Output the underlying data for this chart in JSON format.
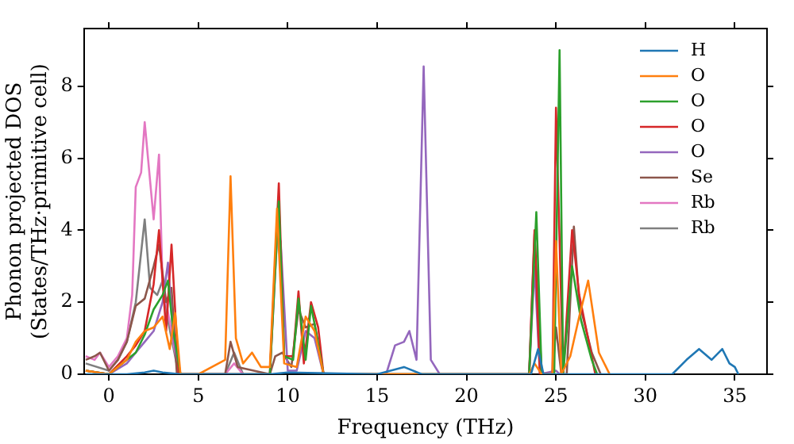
{
  "chart_data": {
    "type": "line",
    "xlabel": "Frequency (THz)",
    "ylabel": "Phonon projected DOS\n(States/THz·primitive cell)",
    "xlim": [
      -1.4,
      36.8
    ],
    "ylim": [
      0,
      9.6
    ],
    "xticks": [
      0,
      5,
      10,
      15,
      20,
      25,
      30,
      35
    ],
    "yticks": [
      0,
      2,
      4,
      6,
      8
    ],
    "grid": false,
    "legend": "top right",
    "marker": "none",
    "line_style": "solid",
    "series": [
      {
        "name": "H",
        "color": "#1f77b4",
        "x": [
          -1.3,
          0,
          1,
          2,
          2.5,
          3,
          4,
          9,
          10,
          15,
          16.5,
          17.5,
          20,
          23.6,
          24,
          24.3,
          25,
          31.5,
          32.3,
          33,
          33.7,
          34.3,
          34.7,
          35,
          35.2
        ],
        "values": [
          0,
          0,
          0,
          0.05,
          0.1,
          0.05,
          0,
          0,
          0.05,
          0,
          0.2,
          0,
          0,
          0,
          0.7,
          0,
          0,
          0,
          0.4,
          0.7,
          0.4,
          0.7,
          0.3,
          0.2,
          0
        ]
      },
      {
        "name": "O",
        "color": "#ff7f0e",
        "x": [
          -1.3,
          0,
          1,
          1.5,
          2,
          2.5,
          3,
          3.4,
          3.7,
          4,
          5,
          6.5,
          6.8,
          7.1,
          7.5,
          8,
          8.5,
          9,
          9.4,
          9.8,
          10.5,
          11,
          11.5,
          12,
          23.5,
          23.8,
          24.2,
          24.8,
          25,
          25.3,
          25.8,
          26.3,
          26.8,
          27.4,
          28
        ],
        "values": [
          0.1,
          0,
          0.4,
          0.9,
          1.2,
          1.3,
          1.6,
          0.7,
          1.7,
          0,
          0,
          0.4,
          5.5,
          1.0,
          0.3,
          0.6,
          0.2,
          0.2,
          4.6,
          0.3,
          0.2,
          1.6,
          1.2,
          0,
          0,
          0.3,
          0,
          0,
          3.7,
          0,
          0.5,
          1.6,
          2.6,
          0.6,
          0
        ]
      },
      {
        "name": "O",
        "color": "#2ca02c",
        "x": [
          -1.3,
          0,
          1,
          1.5,
          2,
          2.5,
          3,
          3.3,
          3.6,
          4,
          9,
          9.5,
          9.8,
          10.3,
          10.6,
          11,
          11.3,
          11.5,
          12,
          23.5,
          23.9,
          24.2,
          24.9,
          25.2,
          25.4,
          25.9,
          26.4,
          27,
          27.3
        ],
        "values": [
          0.1,
          0,
          0.4,
          0.6,
          1.1,
          1.8,
          2.2,
          2.6,
          1.2,
          0,
          0,
          4.8,
          0.5,
          0.4,
          2.1,
          0.4,
          1.9,
          1.4,
          0,
          0,
          4.5,
          0,
          0,
          9.0,
          0,
          3.0,
          1.5,
          0.4,
          0
        ]
      },
      {
        "name": "O",
        "color": "#d62728",
        "x": [
          -1.3,
          0,
          1,
          1.5,
          2,
          2.5,
          2.8,
          3.2,
          3.5,
          3.9,
          9,
          9.5,
          9.8,
          10.3,
          10.6,
          10.9,
          11.3,
          11.7,
          12,
          23.5,
          23.8,
          24.1,
          24.8,
          25.0,
          25.4,
          25.9,
          26.3,
          27.2
        ],
        "values": [
          0.1,
          0,
          0.5,
          0.8,
          1.2,
          2.5,
          4.0,
          1.2,
          3.6,
          0,
          0,
          5.3,
          0.5,
          0.5,
          2.3,
          0.3,
          2.0,
          1.3,
          0,
          0,
          4.0,
          0,
          0,
          7.4,
          0,
          4.0,
          2.2,
          0
        ]
      },
      {
        "name": "O",
        "color": "#9467bd",
        "x": [
          -1.3,
          0,
          1,
          1.5,
          2,
          2.5,
          3,
          3.3,
          3.6,
          4,
          9,
          9.4,
          9.6,
          10,
          10.5,
          11,
          11.5,
          12,
          15.5,
          16,
          16.5,
          16.8,
          17.2,
          17.6,
          18,
          18.5,
          23.5,
          23.8,
          24.1,
          25,
          25.2
        ],
        "values": [
          0.1,
          0,
          0.3,
          0.6,
          0.9,
          1.2,
          2.0,
          3.1,
          1.0,
          0,
          0,
          3.8,
          3.7,
          0.1,
          0.1,
          1.2,
          1.0,
          0,
          0,
          0.8,
          0.9,
          1.2,
          0.4,
          8.55,
          0.4,
          0,
          0,
          3.0,
          0,
          0.1,
          0
        ]
      },
      {
        "name": "Se",
        "color": "#8c564b",
        "x": [
          -1.3,
          -0.8,
          -0.5,
          0,
          0.5,
          1,
          1.5,
          2,
          2.5,
          2.8,
          3.2,
          3.5,
          3.8,
          6.5,
          6.8,
          7.2,
          9,
          9.3,
          9.7,
          10.2,
          10.6,
          11,
          11.5,
          12,
          23.5,
          23.8,
          24.2,
          24.8,
          25,
          25.3,
          25.6,
          26,
          26.3,
          27,
          27.5
        ],
        "values": [
          0.4,
          0.5,
          0.6,
          0.1,
          0.4,
          0.9,
          1.9,
          2.1,
          3.0,
          3.6,
          2.0,
          2.4,
          0,
          0,
          0.9,
          0.2,
          0,
          0.5,
          0.6,
          0.2,
          1.8,
          1.3,
          1.4,
          0,
          0,
          3.9,
          0,
          0,
          1.3,
          0,
          0,
          4.1,
          2.0,
          0.6,
          0
        ]
      },
      {
        "name": "Rb",
        "color": "#e377c2",
        "x": [
          -1.3,
          -0.8,
          -0.5,
          0,
          0.5,
          1,
          1.3,
          1.5,
          1.8,
          2,
          2.5,
          2.8,
          3,
          3.5,
          3.9,
          6.5,
          7,
          7.5
        ],
        "values": [
          0.5,
          0.4,
          0.6,
          0.2,
          0.5,
          1.0,
          2.2,
          5.2,
          5.6,
          7.0,
          4.3,
          6.1,
          2.5,
          1.2,
          0,
          0,
          0.3,
          0
        ]
      },
      {
        "name": "Rb",
        "color": "#7f7f7f",
        "x": [
          -1.3,
          0,
          0.5,
          1,
          1.5,
          2,
          2.3,
          2.7,
          3,
          3.3,
          3.9,
          6.5,
          7,
          7.5
        ],
        "values": [
          0.3,
          0.1,
          0.4,
          0.9,
          2.0,
          4.3,
          2.4,
          2.2,
          2.6,
          1.5,
          0,
          0,
          0.6,
          0
        ]
      }
    ]
  }
}
